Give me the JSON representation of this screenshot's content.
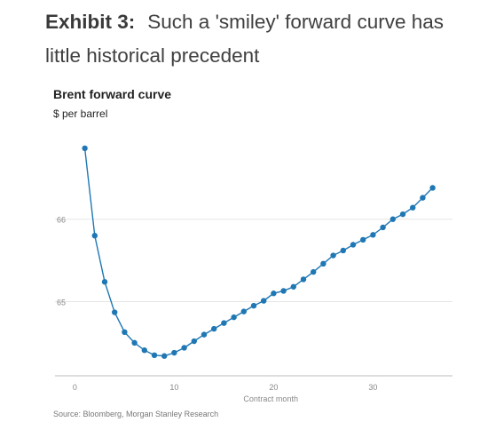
{
  "exhibit": {
    "label": "Exhibit 3:",
    "title": "Such a 'smiley' forward curve has little historical precedent"
  },
  "chart_data": {
    "type": "line",
    "title": "Brent forward curve",
    "subtitle": "$ per barrel",
    "xlabel": "Contract month",
    "ylabel": "",
    "xlim": [
      -2,
      38
    ],
    "ylim": [
      64.1,
      67.15
    ],
    "x_ticks": [
      0,
      10,
      20,
      30
    ],
    "y_ticks": [
      65,
      66
    ],
    "grid": "horizontal",
    "color": "#1f77b4",
    "series": [
      {
        "x": [
          1,
          2,
          3,
          4,
          5,
          6,
          7,
          8,
          9,
          10,
          11,
          12,
          13,
          14,
          15,
          16,
          17,
          18,
          19,
          20,
          21,
          22,
          23,
          24,
          25,
          26,
          27,
          28,
          29,
          30,
          31,
          32,
          33,
          34,
          35,
          36
        ],
        "values": [
          66.86,
          65.8,
          65.24,
          64.87,
          64.63,
          64.5,
          64.41,
          64.35,
          64.34,
          64.38,
          64.44,
          64.52,
          64.6,
          64.67,
          64.74,
          64.81,
          64.88,
          64.95,
          65.01,
          65.1,
          65.13,
          65.18,
          65.27,
          65.36,
          65.46,
          65.56,
          65.62,
          65.69,
          65.75,
          65.81,
          65.9,
          66.0,
          66.06,
          66.14,
          66.26,
          66.38
        ]
      }
    ],
    "source": "Source: Bloomberg, Morgan Stanley Research"
  }
}
